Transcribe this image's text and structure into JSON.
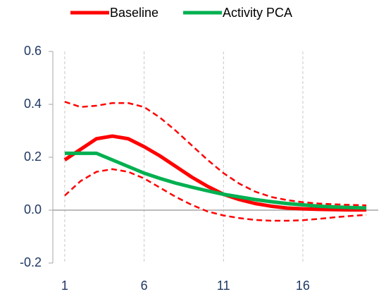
{
  "chart_data": {
    "type": "line",
    "x": [
      1,
      2,
      3,
      4,
      5,
      6,
      7,
      8,
      9,
      10,
      11,
      12,
      13,
      14,
      15,
      16,
      17,
      18,
      19,
      20
    ],
    "series": [
      {
        "name": "Baseline",
        "color": "#ff0000",
        "dashed": false,
        "values": [
          0.19,
          0.23,
          0.27,
          0.28,
          0.27,
          0.24,
          0.205,
          0.165,
          0.125,
          0.09,
          0.06,
          0.04,
          0.025,
          0.015,
          0.008,
          0.005,
          0.003,
          0.002,
          0.001,
          0.001
        ]
      },
      {
        "name": "Activity PCA",
        "color": "#00b050",
        "dashed": false,
        "values": [
          0.215,
          0.215,
          0.215,
          0.19,
          0.165,
          0.14,
          0.12,
          0.102,
          0.087,
          0.073,
          0.06,
          0.05,
          0.04,
          0.032,
          0.025,
          0.02,
          0.015,
          0.012,
          0.01,
          0.008
        ]
      },
      {
        "color": "#ff0000",
        "dashed": true,
        "values": [
          0.41,
          0.39,
          0.395,
          0.405,
          0.405,
          0.39,
          0.35,
          0.3,
          0.245,
          0.19,
          0.14,
          0.1,
          0.07,
          0.05,
          0.038,
          0.03,
          0.025,
          0.022,
          0.02,
          0.018
        ]
      },
      {
        "color": "#ff0000",
        "dashed": true,
        "values": [
          0.055,
          0.11,
          0.145,
          0.155,
          0.145,
          0.12,
          0.085,
          0.05,
          0.02,
          -0.005,
          -0.02,
          -0.03,
          -0.037,
          -0.04,
          -0.04,
          -0.038,
          -0.033,
          -0.027,
          -0.022,
          -0.018
        ]
      }
    ],
    "xlim": [
      0.25,
      20.75
    ],
    "xticks": [
      1,
      6,
      11,
      16
    ],
    "ylim": [
      -0.2,
      0.6
    ],
    "yticks": [
      -0.2,
      {
        "value": 0,
        "label": "0.0"
      },
      0.2,
      0.4,
      0.6
    ],
    "grid": true
  }
}
